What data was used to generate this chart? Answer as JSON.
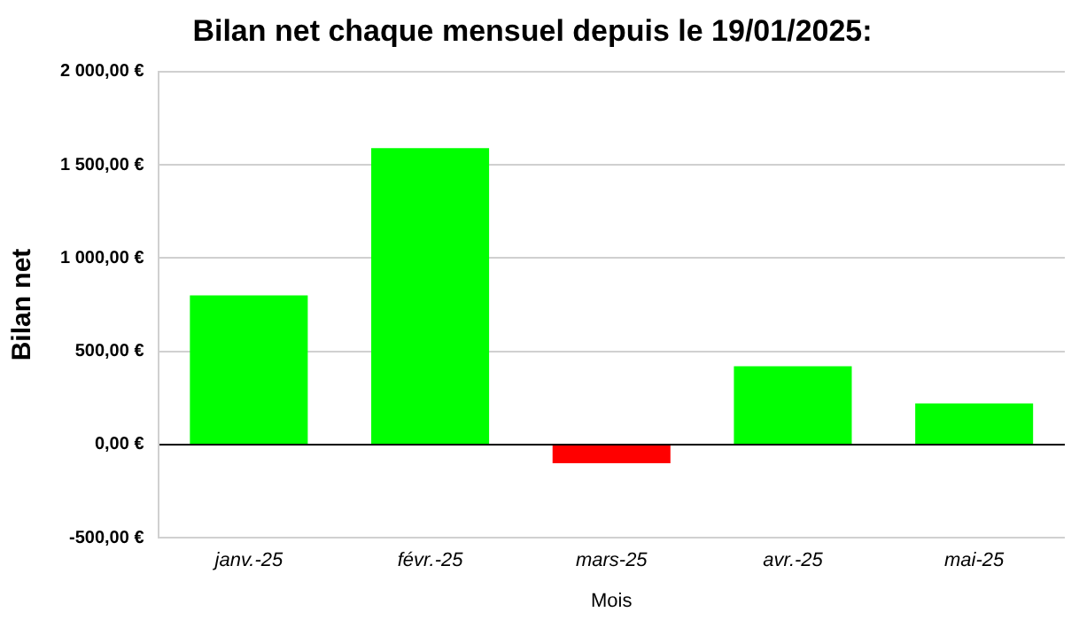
{
  "chart_data": {
    "type": "bar",
    "title": "Bilan net chaque mensuel depuis le 19/01/2025:",
    "xlabel": "Mois",
    "ylabel": "Bilan net",
    "categories": [
      "janv.-25",
      "févr.-25",
      "mars-25",
      "avr.-25",
      "mai-25"
    ],
    "values": [
      800,
      1590,
      -100,
      420,
      220
    ],
    "colors": [
      "#00ff00",
      "#00ff00",
      "#ff0000",
      "#00ff00",
      "#00ff00"
    ],
    "ylim": [
      -500,
      2000
    ],
    "yticks": [
      {
        "value": -500,
        "label": "-500,00 €"
      },
      {
        "value": 0,
        "label": "0,00 €"
      },
      {
        "value": 500,
        "label": "500,00 €"
      },
      {
        "value": 1000,
        "label": "1 000,00 €"
      },
      {
        "value": 1500,
        "label": "1 500,00 €"
      },
      {
        "value": 2000,
        "label": "2 000,00 €"
      }
    ],
    "grid": "y",
    "legend": false
  }
}
